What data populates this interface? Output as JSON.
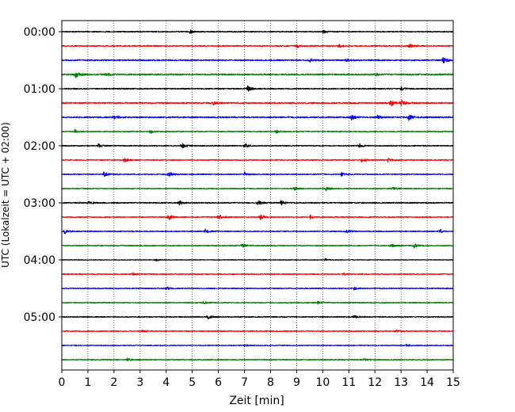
{
  "chart_data": {
    "type": "line",
    "title": "",
    "xlabel": "Zeit  [min]",
    "ylabel": "UTC (Lokalzeit = UTC + 02:00)",
    "xlim": [
      0,
      15
    ],
    "x_ticks": [
      "0",
      "1",
      "2",
      "3",
      "4",
      "5",
      "6",
      "7",
      "8",
      "9",
      "10",
      "11",
      "12",
      "13",
      "14",
      "15"
    ],
    "y_ticks": [
      {
        "label": "00:00",
        "trace": 0
      },
      {
        "label": "01:00",
        "trace": 4
      },
      {
        "label": "02:00",
        "trace": 8
      },
      {
        "label": "03:00",
        "trace": 12
      },
      {
        "label": "04:00",
        "trace": 16
      },
      {
        "label": "05:00",
        "trace": 20
      }
    ],
    "grid": "vertical dotted",
    "trace_minutes": 15,
    "trace_count": 24,
    "trace_colors": [
      "#000000",
      "#ff0000",
      "#0000ff",
      "#008000"
    ],
    "series": [
      {
        "start": "00:00",
        "amplitude": 0.6,
        "events": [
          {
            "t": 4.9,
            "a": 2.5
          },
          {
            "t": 10.0,
            "a": 2.0
          }
        ]
      },
      {
        "start": "00:15",
        "amplitude": 0.7,
        "events": [
          {
            "t": 9.0,
            "a": 2.0
          },
          {
            "t": 10.6,
            "a": 2.2
          },
          {
            "t": 13.3,
            "a": 3.0
          }
        ]
      },
      {
        "start": "00:30",
        "amplitude": 0.8,
        "events": [
          {
            "t": 9.5,
            "a": 2.0
          },
          {
            "t": 10.9,
            "a": 2.0
          },
          {
            "t": 14.6,
            "a": 4.5
          }
        ]
      },
      {
        "start": "00:45",
        "amplitude": 0.9,
        "events": [
          {
            "t": 0.5,
            "a": 5.0
          },
          {
            "t": 1.7,
            "a": 2.0
          },
          {
            "t": 12.0,
            "a": 2.2
          }
        ]
      },
      {
        "start": "01:00",
        "amplitude": 0.7,
        "events": [
          {
            "t": 7.1,
            "a": 4.5
          },
          {
            "t": 13.0,
            "a": 2.0
          }
        ]
      },
      {
        "start": "01:15",
        "amplitude": 0.8,
        "events": [
          {
            "t": 5.8,
            "a": 2.0
          },
          {
            "t": 12.6,
            "a": 4.0
          },
          {
            "t": 13.0,
            "a": 3.5
          }
        ]
      },
      {
        "start": "01:30",
        "amplitude": 0.8,
        "events": [
          {
            "t": 2.0,
            "a": 3.0
          },
          {
            "t": 11.1,
            "a": 3.0
          },
          {
            "t": 12.1,
            "a": 2.5
          },
          {
            "t": 13.3,
            "a": 3.5
          }
        ]
      },
      {
        "start": "01:45",
        "amplitude": 0.6,
        "events": [
          {
            "t": 0.5,
            "a": 2.2
          },
          {
            "t": 3.4,
            "a": 2.5
          },
          {
            "t": 8.2,
            "a": 2.2
          }
        ]
      },
      {
        "start": "02:00",
        "amplitude": 0.6,
        "events": [
          {
            "t": 1.4,
            "a": 3.0
          },
          {
            "t": 4.6,
            "a": 3.5
          },
          {
            "t": 7.0,
            "a": 3.0
          },
          {
            "t": 11.4,
            "a": 2.5
          }
        ]
      },
      {
        "start": "02:15",
        "amplitude": 0.6,
        "events": [
          {
            "t": 2.4,
            "a": 2.5
          },
          {
            "t": 11.5,
            "a": 3.0
          },
          {
            "t": 12.5,
            "a": 2.5
          }
        ]
      },
      {
        "start": "02:30",
        "amplitude": 0.6,
        "events": [
          {
            "t": 1.6,
            "a": 3.0
          },
          {
            "t": 4.1,
            "a": 3.0
          },
          {
            "t": 7.0,
            "a": 2.5
          },
          {
            "t": 10.7,
            "a": 2.5
          }
        ]
      },
      {
        "start": "02:45",
        "amplitude": 0.6,
        "events": [
          {
            "t": 8.9,
            "a": 3.0
          },
          {
            "t": 10.1,
            "a": 3.5
          },
          {
            "t": 12.7,
            "a": 2.2
          }
        ]
      },
      {
        "start": "03:00",
        "amplitude": 0.7,
        "events": [
          {
            "t": 1.0,
            "a": 2.2
          },
          {
            "t": 4.5,
            "a": 2.5
          },
          {
            "t": 7.5,
            "a": 3.5
          },
          {
            "t": 8.4,
            "a": 3.0
          }
        ]
      },
      {
        "start": "03:15",
        "amplitude": 0.6,
        "events": [
          {
            "t": 4.1,
            "a": 3.5
          },
          {
            "t": 6.0,
            "a": 4.0
          },
          {
            "t": 7.6,
            "a": 3.0
          },
          {
            "t": 9.5,
            "a": 2.5
          }
        ]
      },
      {
        "start": "03:30",
        "amplitude": 0.6,
        "events": [
          {
            "t": 0.1,
            "a": 3.0
          },
          {
            "t": 5.5,
            "a": 2.5
          },
          {
            "t": 10.9,
            "a": 2.5
          },
          {
            "t": 14.5,
            "a": 2.5
          }
        ]
      },
      {
        "start": "03:45",
        "amplitude": 0.6,
        "events": [
          {
            "t": 6.9,
            "a": 3.0
          },
          {
            "t": 12.6,
            "a": 2.2
          },
          {
            "t": 13.5,
            "a": 3.0
          }
        ]
      },
      {
        "start": "04:00",
        "amplitude": 0.4,
        "events": [
          {
            "t": 3.6,
            "a": 1.5
          },
          {
            "t": 10.1,
            "a": 1.5
          }
        ]
      },
      {
        "start": "04:15",
        "amplitude": 0.6,
        "events": [
          {
            "t": 2.7,
            "a": 1.8
          },
          {
            "t": 10.8,
            "a": 1.6
          }
        ]
      },
      {
        "start": "04:30",
        "amplitude": 0.6,
        "events": [
          {
            "t": 4.0,
            "a": 1.8
          },
          {
            "t": 11.2,
            "a": 1.6
          }
        ]
      },
      {
        "start": "04:45",
        "amplitude": 0.6,
        "events": [
          {
            "t": 5.4,
            "a": 2.0
          },
          {
            "t": 9.8,
            "a": 1.8
          }
        ]
      },
      {
        "start": "05:00",
        "amplitude": 0.6,
        "events": [
          {
            "t": 5.6,
            "a": 2.5
          },
          {
            "t": 11.2,
            "a": 2.0
          }
        ]
      },
      {
        "start": "05:15",
        "amplitude": 0.6,
        "events": [
          {
            "t": 3.1,
            "a": 1.5
          },
          {
            "t": 12.8,
            "a": 1.5
          }
        ]
      },
      {
        "start": "05:30",
        "amplitude": 0.5,
        "events": [
          {
            "t": 7.0,
            "a": 1.5
          },
          {
            "t": 13.2,
            "a": 1.5
          }
        ]
      },
      {
        "start": "05:45",
        "amplitude": 0.6,
        "events": [
          {
            "t": 2.5,
            "a": 1.8
          },
          {
            "t": 11.6,
            "a": 1.8
          }
        ]
      }
    ]
  }
}
